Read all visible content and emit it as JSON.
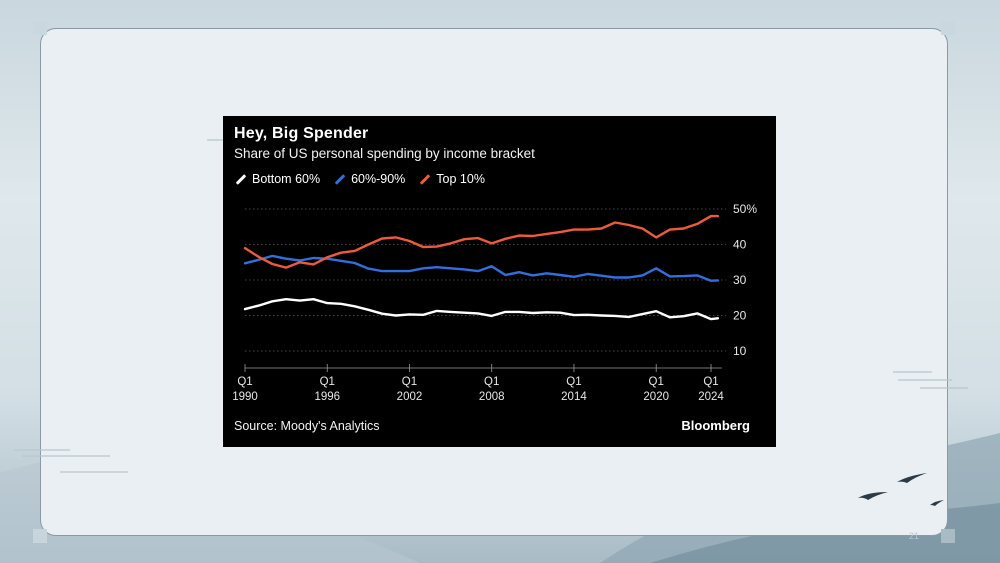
{
  "slide": {
    "page_number": "21"
  },
  "chart": {
    "title": "Hey, Big Spender",
    "subtitle": "Share of US personal spending by income bracket",
    "source": "Source: Moody's Analytics",
    "brand": "Bloomberg",
    "legend": [
      {
        "label": "Bottom 60%",
        "color": "#ffffff"
      },
      {
        "label": "60%-90%",
        "color": "#2f6fe0"
      },
      {
        "label": "Top 10%",
        "color": "#f05a3a"
      }
    ]
  },
  "chart_data": {
    "type": "line",
    "title": "Hey, Big Spender",
    "subtitle": "Share of US personal spending by income bracket",
    "xlabel": "",
    "ylabel": "",
    "ylim": [
      10,
      50
    ],
    "xlim": [
      1990,
      2024.8
    ],
    "y_ticks": [
      "50%",
      "40",
      "30",
      "20",
      "10"
    ],
    "x_ticks": [
      {
        "q": "Q1",
        "year": "1990",
        "x": 1990
      },
      {
        "q": "Q1",
        "year": "1996",
        "x": 1996
      },
      {
        "q": "Q1",
        "year": "2002",
        "x": 2002
      },
      {
        "q": "Q1",
        "year": "2008",
        "x": 2008
      },
      {
        "q": "Q1",
        "year": "2014",
        "x": 2014
      },
      {
        "q": "Q1",
        "year": "2020",
        "x": 2020
      },
      {
        "q": "Q1",
        "year": "2024",
        "x": 2024
      }
    ],
    "grid": true,
    "legend_position": "top-left",
    "x": [
      1990,
      1991,
      1992,
      1993,
      1994,
      1995,
      1996,
      1997,
      1998,
      1999,
      2000,
      2001,
      2002,
      2003,
      2004,
      2005,
      2006,
      2007,
      2008,
      2009,
      2010,
      2011,
      2012,
      2013,
      2014,
      2015,
      2016,
      2017,
      2018,
      2019,
      2020,
      2021,
      2022,
      2023,
      2024,
      2024.5
    ],
    "series": [
      {
        "name": "Bottom 60%",
        "color": "#ffffff",
        "values": [
          21.8,
          22.8,
          24.0,
          24.6,
          24.2,
          24.6,
          23.5,
          23.3,
          22.6,
          21.6,
          20.5,
          20.0,
          20.3,
          20.2,
          21.3,
          21.0,
          20.8,
          20.6,
          19.9,
          21.0,
          21.0,
          20.7,
          20.9,
          20.8,
          20.1,
          20.2,
          20.0,
          19.9,
          19.6,
          20.4,
          21.2,
          19.5,
          19.8,
          20.6,
          19.0,
          19.2
        ]
      },
      {
        "name": "60%-90%",
        "color": "#2f6fe0",
        "values": [
          34.7,
          35.7,
          36.8,
          36.0,
          35.5,
          36.2,
          36.0,
          35.4,
          34.8,
          33.2,
          32.5,
          32.5,
          32.5,
          33.3,
          33.6,
          33.3,
          33.0,
          32.5,
          33.9,
          31.4,
          32.2,
          31.3,
          31.9,
          31.4,
          30.9,
          31.7,
          31.2,
          30.7,
          30.7,
          31.3,
          33.3,
          31.0,
          31.1,
          31.3,
          29.8,
          29.9
        ]
      },
      {
        "name": "Top 10%",
        "color": "#f05a3a",
        "values": [
          39.0,
          36.5,
          34.5,
          33.5,
          35.0,
          34.4,
          36.4,
          37.7,
          38.2,
          40.0,
          41.7,
          42.0,
          41.0,
          39.3,
          39.4,
          40.3,
          41.5,
          41.8,
          40.3,
          41.6,
          42.5,
          42.4,
          43.0,
          43.5,
          44.2,
          44.2,
          44.5,
          46.2,
          45.5,
          44.5,
          42.0,
          44.2,
          44.5,
          45.8,
          48.0,
          48.0
        ]
      }
    ]
  }
}
